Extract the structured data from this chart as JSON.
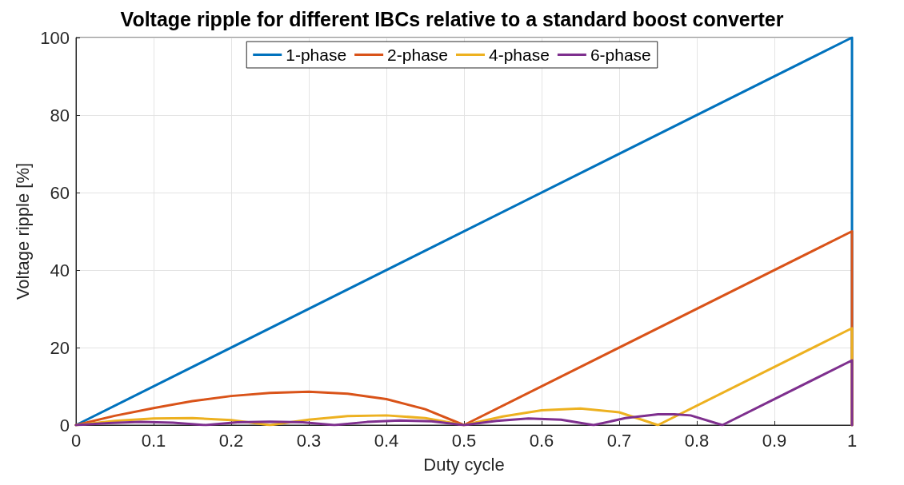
{
  "chart_data": {
    "type": "line",
    "title": "Voltage ripple for different IBCs relative to a standard boost converter",
    "xlabel": "Duty cycle",
    "ylabel": "Voltage ripple [%]",
    "xlim": [
      0,
      1
    ],
    "xticks": [
      0,
      0.1,
      0.2,
      0.3,
      0.4,
      0.5,
      0.6,
      0.7,
      0.8,
      0.9,
      1
    ],
    "ylim": [
      0,
      100
    ],
    "yticks": [
      0,
      20,
      40,
      60,
      80,
      100
    ],
    "grid": true,
    "legend": "top",
    "marker": "none",
    "line_style": "solid",
    "series": [
      {
        "name": "1-phase",
        "color": "#0072bd",
        "x": [
          0,
          1,
          1
        ],
        "values": [
          0,
          100,
          0
        ]
      },
      {
        "name": "2-phase",
        "color": "#d95319",
        "x": [
          0,
          0.05,
          0.1,
          0.15,
          0.2,
          0.25,
          0.3,
          0.35,
          0.4,
          0.45,
          0.5,
          1,
          1
        ],
        "values": [
          0,
          2.4,
          4.4,
          6.2,
          7.5,
          8.3,
          8.6,
          8.1,
          6.7,
          4.1,
          0,
          50,
          0
        ]
      },
      {
        "name": "4-phase",
        "color": "#edb120",
        "x": [
          0,
          0.05,
          0.1,
          0.15,
          0.2,
          0.25,
          0.3,
          0.35,
          0.4,
          0.45,
          0.5,
          0.55,
          0.6,
          0.65,
          0.7,
          0.75,
          1,
          1
        ],
        "values": [
          0,
          1.1,
          1.7,
          1.8,
          1.3,
          0,
          1.4,
          2.3,
          2.5,
          1.8,
          0,
          2.2,
          3.8,
          4.3,
          3.3,
          0,
          25,
          0
        ]
      },
      {
        "name": "6-phase",
        "color": "#7e2f8e",
        "x": [
          0,
          0.042,
          0.083,
          0.125,
          0.167,
          0.208,
          0.25,
          0.292,
          0.333,
          0.375,
          0.417,
          0.458,
          0.5,
          0.542,
          0.583,
          0.625,
          0.667,
          0.708,
          0.75,
          0.771,
          0.792,
          0.833,
          1,
          1
        ],
        "values": [
          0,
          0.5,
          0.8,
          0.6,
          0,
          0.7,
          0.9,
          0.7,
          0,
          0.8,
          1.2,
          1.0,
          0,
          1.1,
          1.7,
          1.4,
          0,
          1.8,
          2.8,
          2.8,
          2.5,
          0,
          16.7,
          0
        ]
      }
    ]
  }
}
